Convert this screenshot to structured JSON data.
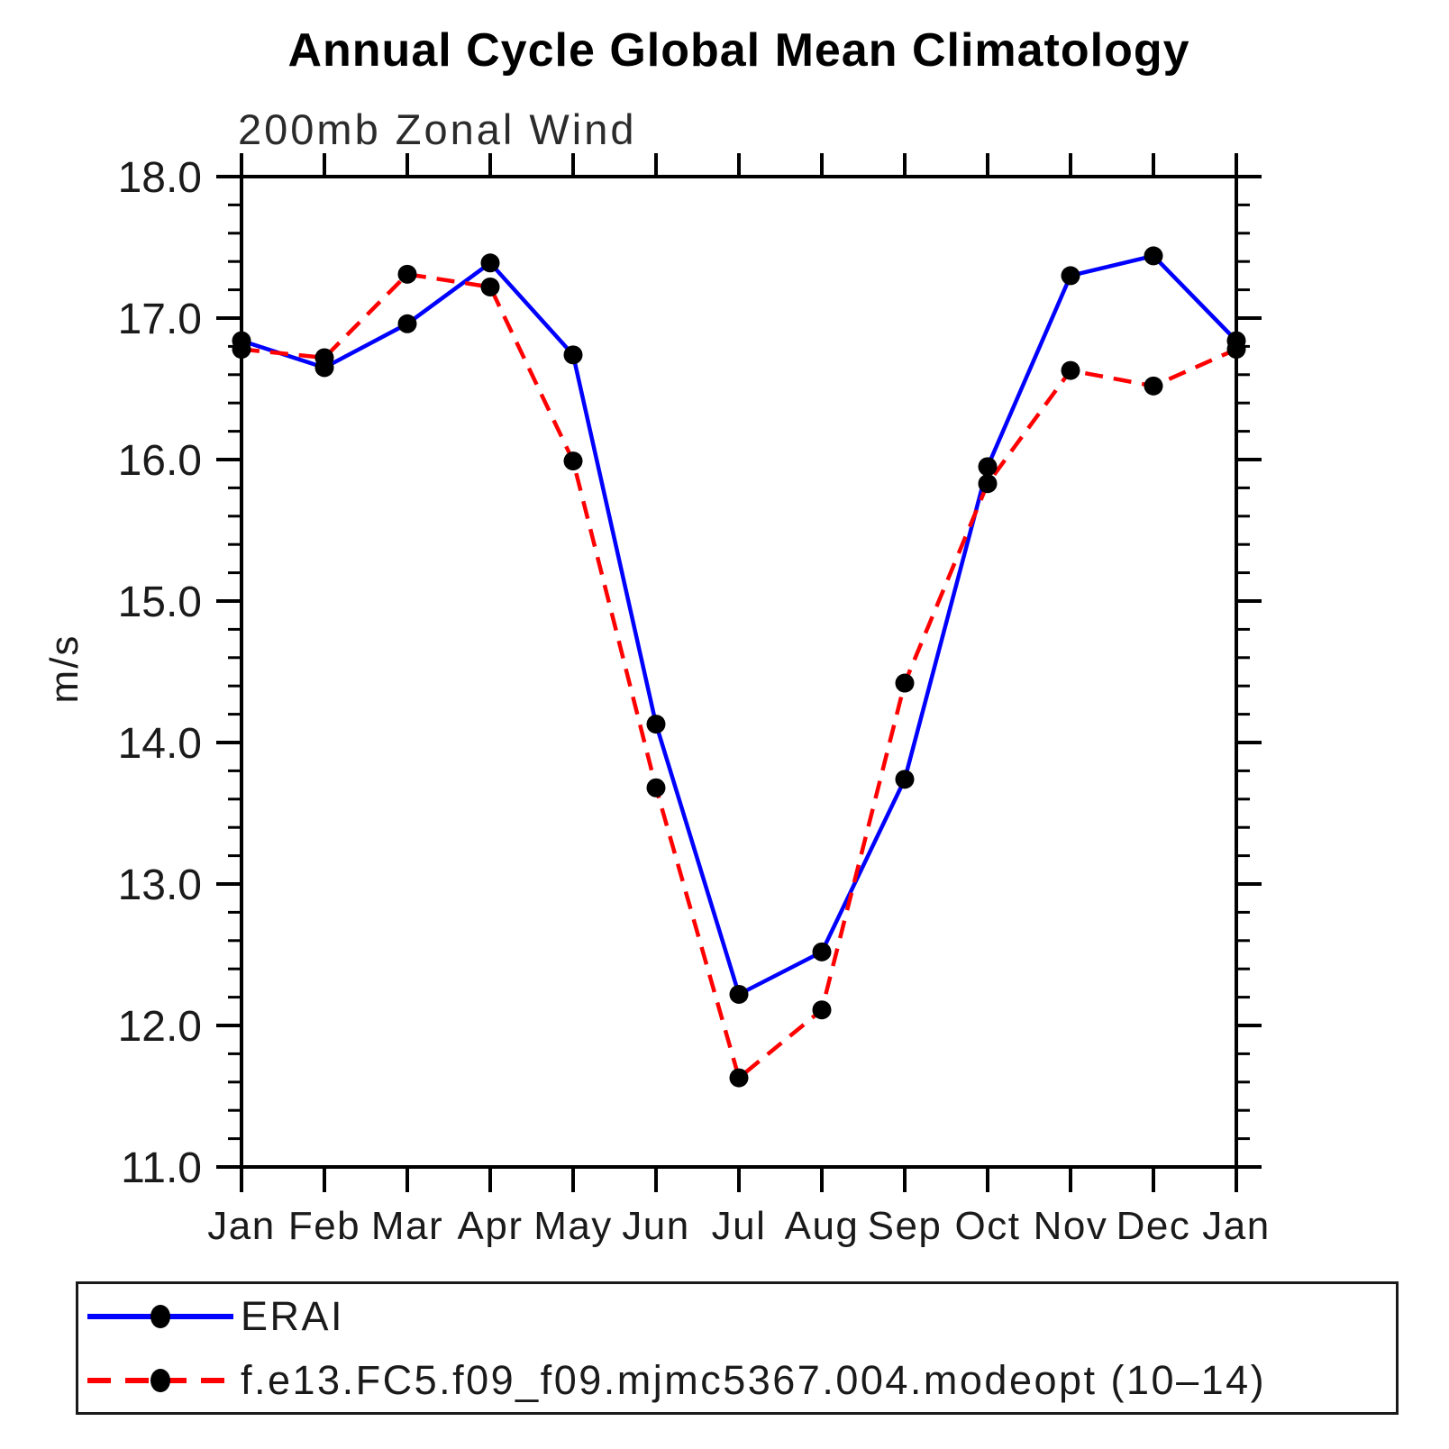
{
  "chart_data": {
    "type": "line",
    "title": "Annual Cycle Global Mean Climatology",
    "subtitle": "200mb Zonal Wind",
    "ylabel": "m/s",
    "xlabel": "",
    "ylim": [
      11.0,
      18.0
    ],
    "ytick_interval": 1.0,
    "yminor_interval": 0.2,
    "ytick_labels": [
      "11.0",
      "12.0",
      "13.0",
      "14.0",
      "15.0",
      "16.0",
      "17.0",
      "18.0"
    ],
    "categories": [
      "Jan",
      "Feb",
      "Mar",
      "Apr",
      "May",
      "Jun",
      "Jul",
      "Aug",
      "Sep",
      "Oct",
      "Nov",
      "Dec",
      "Jan"
    ],
    "grid": false,
    "legend_position": "bottom",
    "marker": "filled-circle",
    "marker_color": "#000000",
    "series": [
      {
        "name": "ERAI",
        "color": "#0000ff",
        "style": "solid",
        "values": [
          16.84,
          16.65,
          16.96,
          17.39,
          16.74,
          14.13,
          12.22,
          12.52,
          13.74,
          15.95,
          17.3,
          17.44,
          16.84
        ]
      },
      {
        "name": "f.e13.FC5.f09_f09.mjmc5367.004.modeopt (10–14)",
        "color": "#ff0000",
        "style": "dashed",
        "values": [
          16.78,
          16.72,
          17.31,
          17.22,
          15.99,
          13.68,
          11.63,
          12.11,
          14.42,
          15.83,
          16.63,
          16.52,
          16.78
        ]
      }
    ]
  }
}
